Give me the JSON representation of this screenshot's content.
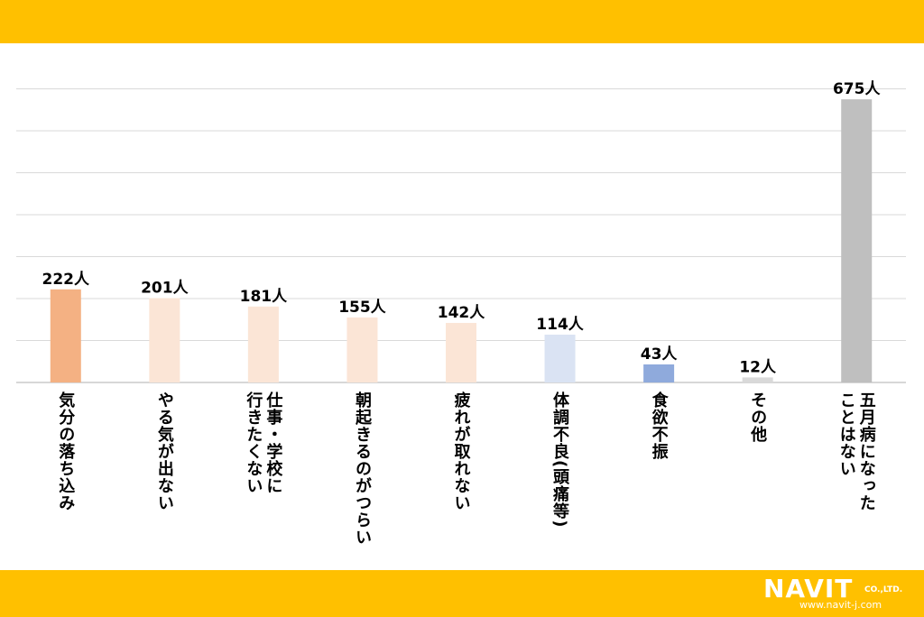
{
  "chart_data": {
    "type": "bar",
    "categories": [
      [
        "気分の落ち込み"
      ],
      [
        "やる気が出ない"
      ],
      [
        "仕事・学校に",
        "行きたくない"
      ],
      [
        "朝起きるのがつらい"
      ],
      [
        "疲れが取れない"
      ],
      [
        "体調不良(頭痛等)"
      ],
      [
        "食欲不振"
      ],
      [
        "その他"
      ],
      [
        "五月病になった",
        "ことはない"
      ]
    ],
    "values": [
      222,
      201,
      181,
      155,
      142,
      114,
      43,
      12,
      675
    ],
    "value_labels": [
      "222人",
      "201人",
      "181人",
      "155人",
      "142人",
      "114人",
      "43人",
      "12人",
      "675人"
    ],
    "colors": [
      "#F4B183",
      "#FBE5D6",
      "#FBE5D6",
      "#FBE5D6",
      "#FBE5D6",
      "#DAE3F3",
      "#8FAADC",
      "#D9D9D9",
      "#BFBFBF"
    ],
    "ylim": [
      0,
      700
    ],
    "grid": true,
    "legend": "none"
  },
  "logo": {
    "main": "NAVIT",
    "sub": "CO.,LTD.",
    "url": "www.navit-j.com"
  }
}
